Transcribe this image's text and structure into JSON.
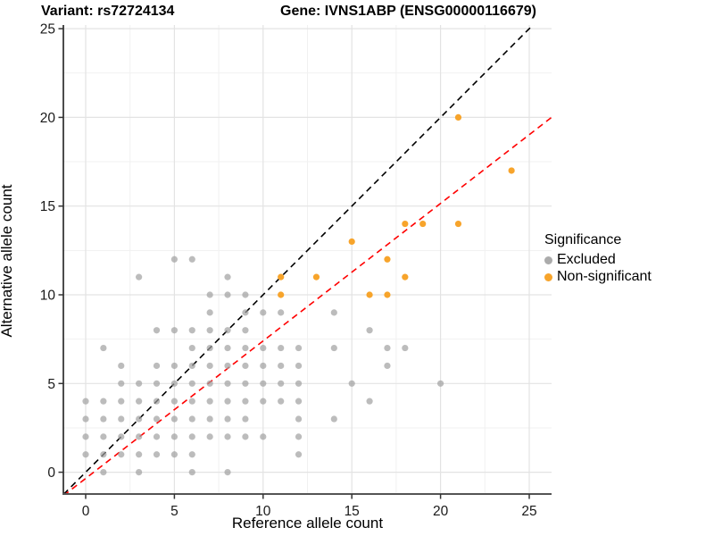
{
  "header": {
    "variant_title": "Variant: rs72724134",
    "gene_title": "Gene: IVNS1ABP (ENSG00000116679)"
  },
  "axes": {
    "x_label": "Reference allele count",
    "y_label": "Alternative allele count",
    "x_ticks": [
      "0",
      "5",
      "10",
      "15",
      "20",
      "25"
    ],
    "y_ticks": [
      "0",
      "5",
      "10",
      "15",
      "20",
      "25"
    ]
  },
  "legend": {
    "title": "Significance",
    "items": [
      {
        "label": "Excluded",
        "color": "#ababab"
      },
      {
        "label": "Non-significant",
        "color": "#F7A42B"
      }
    ]
  },
  "colors": {
    "excluded_point": "#9f9f9f",
    "nonsignificant_point": "#F7A42B",
    "identity_line": "#000000",
    "fit_line": "#ff0000",
    "grid_major": "#e3e3e3",
    "grid_minor": "#f1f1f1",
    "axis_line": "#333333"
  },
  "chart_data": {
    "type": "scatter",
    "title": "Variant: rs72724134 | Gene: IVNS1ABP (ENSG00000116679)",
    "xlabel": "Reference allele count",
    "ylabel": "Alternative allele count",
    "xlim": [
      -1.25,
      26.25
    ],
    "ylim": [
      -1.25,
      26.25
    ],
    "x_major": [
      0,
      5,
      10,
      15,
      20,
      25
    ],
    "x_minor": [
      2.5,
      7.5,
      12.5,
      17.5,
      22.5
    ],
    "y_major": [
      0,
      5,
      10,
      15,
      20,
      25
    ],
    "y_minor": [
      2.5,
      7.5,
      12.5,
      17.5,
      22.5
    ],
    "grid": "major and minor light gray on white",
    "legend_position": "right",
    "series": [
      {
        "name": "Excluded",
        "color": "#9f9f9f",
        "opacity": 0.7,
        "points": [
          [
            0,
            1
          ],
          [
            0,
            2
          ],
          [
            0,
            3
          ],
          [
            0,
            4
          ],
          [
            1,
            0
          ],
          [
            1,
            1
          ],
          [
            1,
            2
          ],
          [
            1,
            3
          ],
          [
            1,
            4
          ],
          [
            1,
            7
          ],
          [
            2,
            1
          ],
          [
            2,
            2
          ],
          [
            2,
            3
          ],
          [
            2,
            4
          ],
          [
            2,
            5
          ],
          [
            2,
            6
          ],
          [
            3,
            0
          ],
          [
            3,
            1
          ],
          [
            3,
            2
          ],
          [
            3,
            3
          ],
          [
            3,
            4
          ],
          [
            3,
            5
          ],
          [
            3,
            11
          ],
          [
            4,
            1
          ],
          [
            4,
            2
          ],
          [
            4,
            3
          ],
          [
            4,
            4
          ],
          [
            4,
            5
          ],
          [
            4,
            6
          ],
          [
            4,
            8
          ],
          [
            5,
            1
          ],
          [
            5,
            2
          ],
          [
            5,
            3
          ],
          [
            5,
            4
          ],
          [
            5,
            5
          ],
          [
            5,
            6
          ],
          [
            5,
            8
          ],
          [
            5,
            12
          ],
          [
            6,
            0
          ],
          [
            6,
            1
          ],
          [
            6,
            2
          ],
          [
            6,
            3
          ],
          [
            6,
            4
          ],
          [
            6,
            5
          ],
          [
            6,
            6
          ],
          [
            6,
            7
          ],
          [
            6,
            8
          ],
          [
            6,
            12
          ],
          [
            7,
            2
          ],
          [
            7,
            3
          ],
          [
            7,
            4
          ],
          [
            7,
            5
          ],
          [
            7,
            6
          ],
          [
            7,
            7
          ],
          [
            7,
            8
          ],
          [
            7,
            9
          ],
          [
            7,
            10
          ],
          [
            8,
            0
          ],
          [
            8,
            2
          ],
          [
            8,
            3
          ],
          [
            8,
            4
          ],
          [
            8,
            5
          ],
          [
            8,
            6
          ],
          [
            8,
            7
          ],
          [
            8,
            8
          ],
          [
            8,
            10
          ],
          [
            8,
            11
          ],
          [
            9,
            2
          ],
          [
            9,
            3
          ],
          [
            9,
            4
          ],
          [
            9,
            5
          ],
          [
            9,
            6
          ],
          [
            9,
            7
          ],
          [
            9,
            8
          ],
          [
            9,
            9
          ],
          [
            9,
            10
          ],
          [
            10,
            2
          ],
          [
            10,
            4
          ],
          [
            10,
            5
          ],
          [
            10,
            6
          ],
          [
            10,
            7
          ],
          [
            10,
            9
          ],
          [
            11,
            4
          ],
          [
            11,
            5
          ],
          [
            11,
            6
          ],
          [
            11,
            7
          ],
          [
            11,
            9
          ],
          [
            12,
            1
          ],
          [
            12,
            2
          ],
          [
            12,
            3
          ],
          [
            12,
            4
          ],
          [
            12,
            5
          ],
          [
            12,
            6
          ],
          [
            12,
            7
          ],
          [
            14,
            3
          ],
          [
            14,
            7
          ],
          [
            14,
            9
          ],
          [
            15,
            5
          ],
          [
            16,
            4
          ],
          [
            16,
            8
          ],
          [
            17,
            6
          ],
          [
            17,
            7
          ],
          [
            18,
            7
          ],
          [
            20,
            5
          ]
        ]
      },
      {
        "name": "Non-significant",
        "color": "#F7A42B",
        "opacity": 1,
        "points": [
          [
            11,
            10
          ],
          [
            16,
            10
          ],
          [
            17,
            10
          ],
          [
            11,
            11
          ],
          [
            13,
            11
          ],
          [
            18,
            11
          ],
          [
            17,
            12
          ],
          [
            15,
            13
          ],
          [
            18,
            14
          ],
          [
            19,
            14
          ],
          [
            21,
            14
          ],
          [
            24,
            17
          ],
          [
            21,
            20
          ]
        ]
      }
    ],
    "lines": [
      {
        "name": "identity",
        "slope": 1,
        "intercept": 0,
        "color": "#000000",
        "style": "dashed"
      },
      {
        "name": "fit",
        "slope": 0.775,
        "intercept": -0.35,
        "color": "#ff0000",
        "style": "dashed"
      }
    ]
  }
}
